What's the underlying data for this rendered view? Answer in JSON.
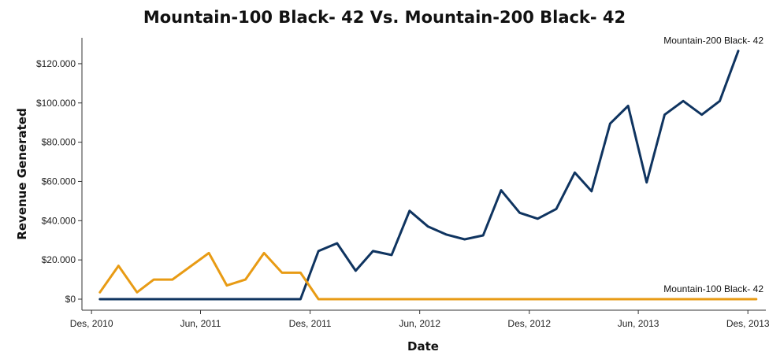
{
  "chart_data": {
    "type": "line",
    "title": "Mountain-100 Black- 42 Vs. Mountain-200 Black- 42",
    "xlabel": "Date",
    "ylabel": "Revenue Generated",
    "x_ticks": [
      "Des, 2010",
      "Jun, 2011",
      "Des, 2011",
      "Jun, 2012",
      "Des, 2012",
      "Jun, 2013",
      "Des, 2013"
    ],
    "y_ticks": [
      "$0",
      "$20.000",
      "$40.000",
      "$60.000",
      "$80.000",
      "$100.000",
      "$120.000"
    ],
    "ylim": [
      0,
      130000
    ],
    "xlim": [
      "2010-11-15",
      "2013-12-31"
    ],
    "grid": false,
    "x": [
      "2010-12",
      "2011-01",
      "2011-02",
      "2011-03",
      "2011-04",
      "2011-05",
      "2011-06",
      "2011-07",
      "2011-08",
      "2011-09",
      "2011-10",
      "2011-11",
      "2011-12",
      "2012-01",
      "2012-02",
      "2012-03",
      "2012-04",
      "2012-05",
      "2012-06",
      "2012-07",
      "2012-08",
      "2012-09",
      "2012-10",
      "2012-11",
      "2012-12",
      "2013-01",
      "2013-02",
      "2013-03",
      "2013-04",
      "2013-05",
      "2013-06",
      "2013-07",
      "2013-08",
      "2013-09",
      "2013-10",
      "2013-11",
      "2013-12"
    ],
    "series": [
      {
        "name": "Mountain-200 Black- 42",
        "color": "#0f3460",
        "values": [
          0,
          0,
          0,
          0,
          0,
          0,
          0,
          0,
          0,
          0,
          0,
          0,
          24500,
          28500,
          14500,
          24500,
          22500,
          45000,
          37000,
          33000,
          30500,
          32500,
          55500,
          44000,
          41000,
          46000,
          64500,
          55000,
          89500,
          98500,
          59500,
          94000,
          101000,
          94000,
          101000,
          126500,
          null
        ]
      },
      {
        "name": "Mountain-100 Black- 42",
        "color": "#e89b14",
        "values": [
          3500,
          17000,
          3500,
          10000,
          10000,
          null,
          23500,
          7000,
          10000,
          23500,
          13500,
          13500,
          0,
          0,
          0,
          0,
          0,
          0,
          0,
          0,
          0,
          0,
          0,
          0,
          0,
          0,
          0,
          0,
          0,
          0,
          0,
          0,
          0,
          0,
          0,
          0,
          0
        ]
      }
    ]
  }
}
